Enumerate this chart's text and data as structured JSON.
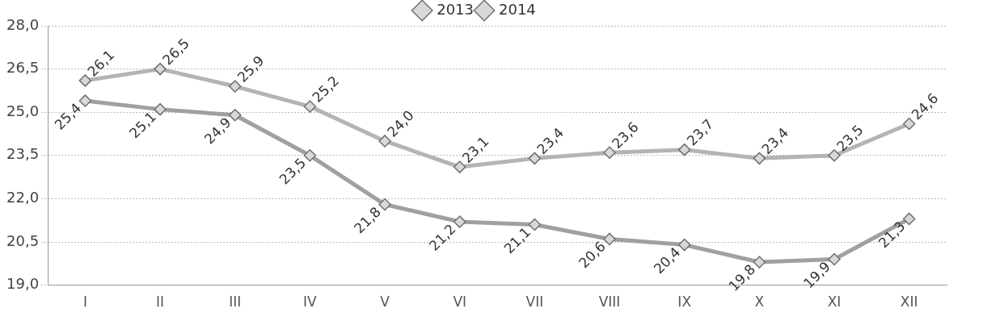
{
  "chart_data": {
    "type": "line",
    "categories": [
      "I",
      "II",
      "III",
      "IV",
      "V",
      "VI",
      "VII",
      "VIII",
      "IX",
      "X",
      "XI",
      "XII"
    ],
    "series": [
      {
        "name": "2013",
        "color": "#b4b4b4",
        "values": [
          26.1,
          26.5,
          25.9,
          25.2,
          24.0,
          23.1,
          23.4,
          23.6,
          23.7,
          23.4,
          23.5,
          24.6
        ],
        "value_labels": [
          "26,1",
          "26,5",
          "25,9",
          "25,2",
          "24,0",
          "23,1",
          "23,4",
          "23,6",
          "23,7",
          "23,4",
          "23,5",
          "24,6"
        ]
      },
      {
        "name": "2014",
        "color": "#a0a0a0",
        "values": [
          25.4,
          25.1,
          24.9,
          23.5,
          21.8,
          21.2,
          21.1,
          20.6,
          20.4,
          19.8,
          19.9,
          21.3
        ],
        "value_labels": [
          "25,4",
          "25,1",
          "24,9",
          "23,5",
          "21,8",
          "21,2",
          "21,1",
          "20,6",
          "20,4",
          "19,8",
          "19,9",
          "21,3"
        ]
      }
    ],
    "ylim": [
      19,
      28
    ],
    "yticks": [
      {
        "value": 19,
        "label": "19,0"
      },
      {
        "value": 20.5,
        "label": "20,5"
      },
      {
        "value": 22,
        "label": "22,0"
      },
      {
        "value": 23.5,
        "label": "23,5"
      },
      {
        "value": 25,
        "label": "25,0"
      },
      {
        "value": 26.5,
        "label": "26,5"
      },
      {
        "value": 28,
        "label": "28,0"
      }
    ],
    "grid": "y",
    "legend": "top",
    "marker": "diamond",
    "line_style": "solid"
  }
}
